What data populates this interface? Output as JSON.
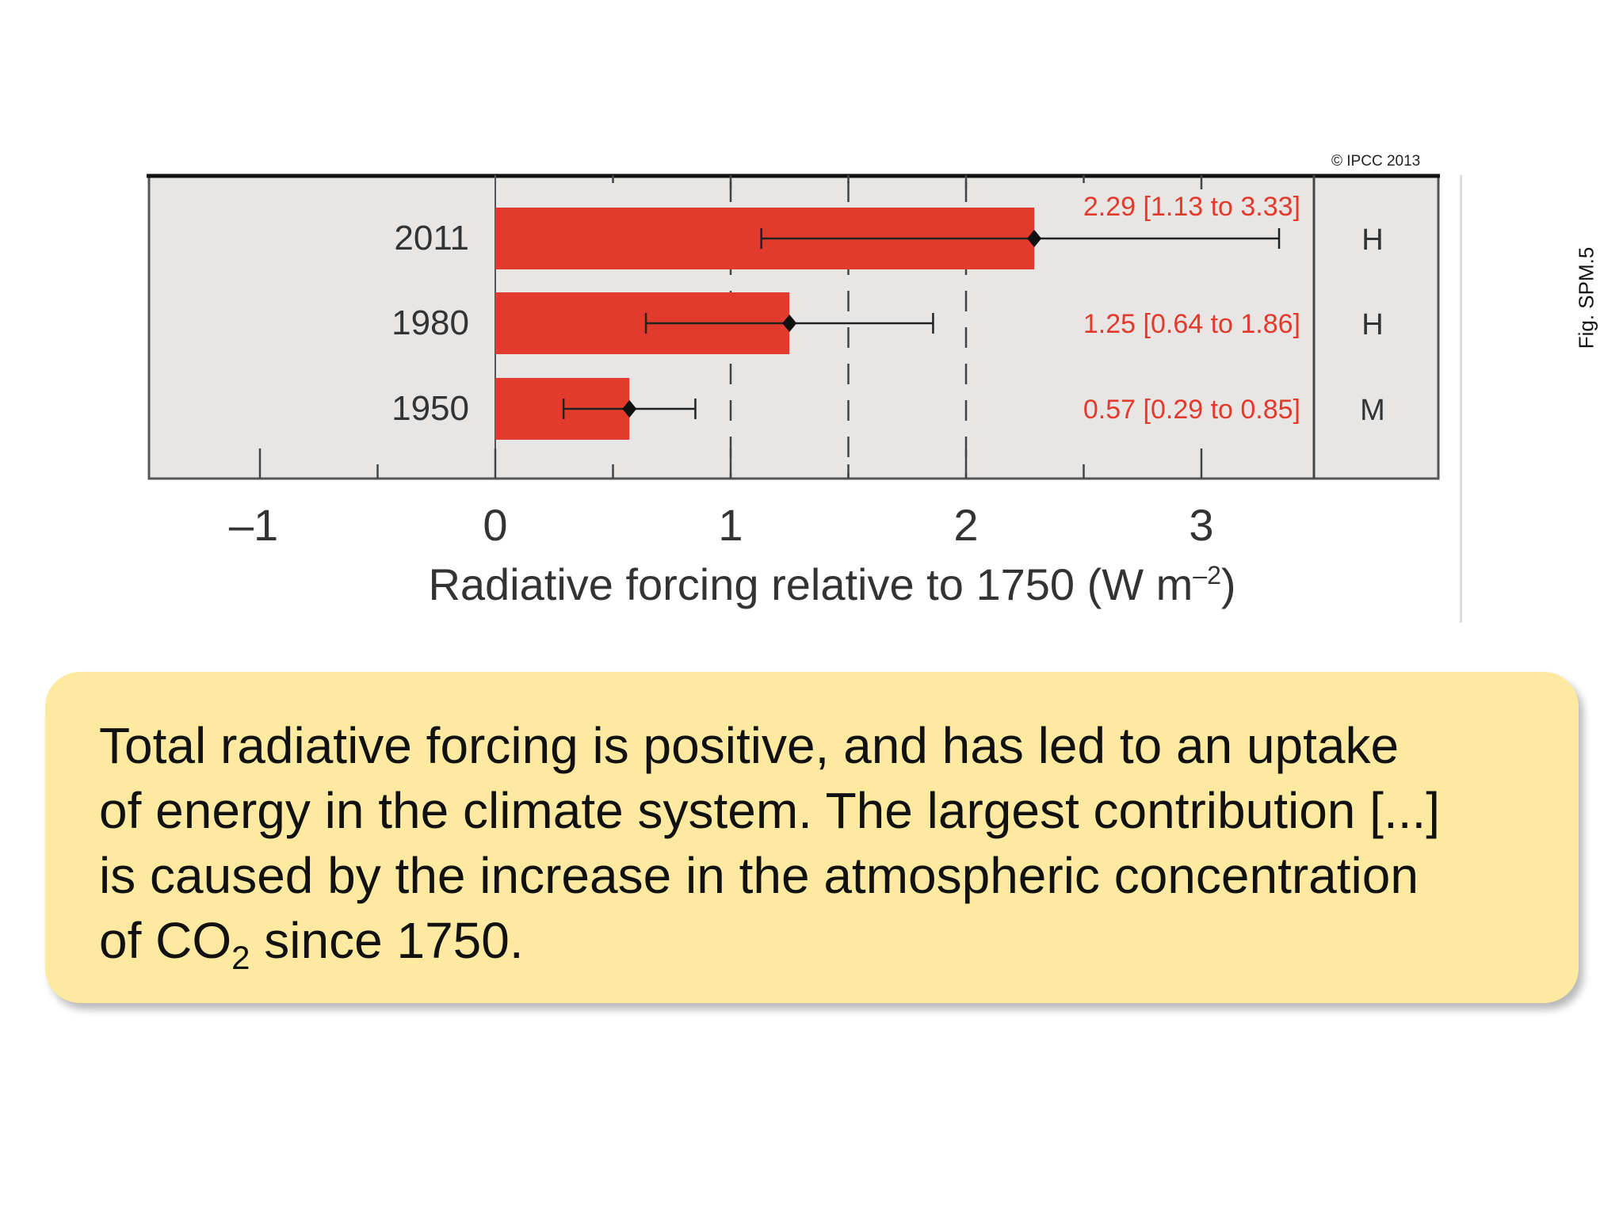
{
  "copyright": "© IPCC 2013",
  "figure_label": "Fig. SPM.5",
  "quote": {
    "line1": "Total radiative forcing is positive, and has led to an uptake",
    "line2": "of energy in the climate system. The largest contribution [...]",
    "line3": "is caused by the increase in the atmospheric concentration",
    "line4_pre": "of CO",
    "line4_sub": "2",
    "line4_post": " since 1750."
  },
  "colors": {
    "bar": "#e23a2c",
    "annotation": "#e23a2c",
    "panel_bg": "#e8e6e5",
    "quote_bg": "#fde9a0"
  },
  "chart_data": {
    "type": "bar",
    "orientation": "horizontal",
    "categories": [
      "2011",
      "1980",
      "1950"
    ],
    "values": [
      2.29,
      1.25,
      0.57
    ],
    "error_low": [
      1.13,
      0.64,
      0.29
    ],
    "error_high": [
      3.33,
      1.86,
      0.85
    ],
    "value_labels": [
      "2.29 [1.13 to 3.33]",
      "1.25 [0.64 to 1.86]",
      "0.57 [0.29 to 0.85]"
    ],
    "confidence": [
      "H",
      "H",
      "M"
    ],
    "xlim": [
      -1.0,
      3.6
    ],
    "xticks": [
      -1,
      0,
      1,
      2,
      3
    ],
    "xtick_labels": [
      "–1",
      "0",
      "1",
      "2",
      "3"
    ],
    "dashed_gridlines": [
      1,
      1.5,
      2
    ],
    "xlabel_main": "Radiative forcing relative to 1750 (W m",
    "xlabel_sup": "–2",
    "xlabel_close": ")",
    "grid": false,
    "legend": "none"
  }
}
